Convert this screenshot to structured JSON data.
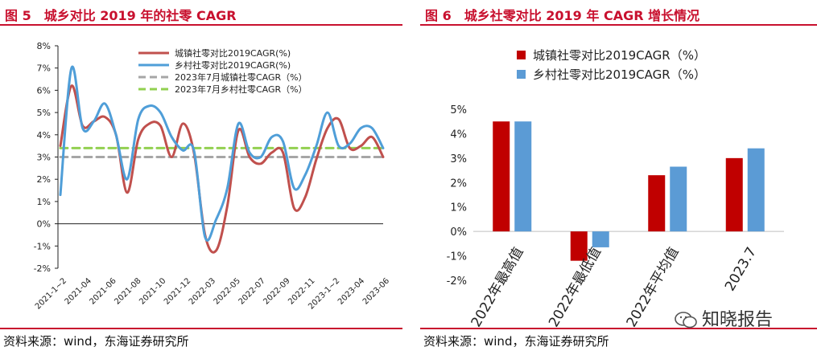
{
  "left": {
    "title": "图 5　城乡对比 2019 年的社零 CAGR",
    "source": "资料来源：wind，东海证券研究所"
  },
  "right": {
    "title": "图 6　城乡社零对比 2019 年 CAGR 增长情况",
    "source": "资料来源：wind，东海证券研究所"
  },
  "watermark": {
    "text": "知晓报告",
    "icon": "wechat-icon"
  },
  "colors": {
    "urban": "#c0504d",
    "rural": "#4f9ed8",
    "urban_avg": "#a6a6a6",
    "rural_avg": "#92d050",
    "bar_urban": "#c00000",
    "bar_rural": "#5b9bd5",
    "accent": "#c8102e"
  },
  "chart_data": [
    {
      "type": "line",
      "x_ticks": [
        "2021-1~2",
        "2021-04",
        "2021-06",
        "2021-08",
        "2021-10",
        "2021-12",
        "2022-03",
        "2022-05",
        "2022-07",
        "2022-09",
        "2022-11",
        "2023-1~2",
        "2023-04",
        "2023-06"
      ],
      "y_ticks": [
        "-2%",
        "-1%",
        "0%",
        "1%",
        "2%",
        "3%",
        "4%",
        "5%",
        "6%",
        "7%",
        "8%"
      ],
      "ylim": [
        -2,
        8
      ],
      "legend_position": "top-right",
      "series": [
        {
          "name": "城镇社零对比2019CAGR(%)",
          "style": "solid",
          "values": [
            3.5,
            6.2,
            4.4,
            4.6,
            4.8,
            4.0,
            1.4,
            3.8,
            4.5,
            4.4,
            3.0,
            4.5,
            3.2,
            -0.5,
            -1.2,
            0.8,
            4.2,
            3.0,
            2.7,
            3.2,
            3.2,
            0.7,
            1.2,
            2.9,
            4.3,
            4.7,
            3.4,
            3.5,
            3.9,
            3.0
          ]
        },
        {
          "name": "乡村社零对比2019CAGR(%)",
          "style": "solid",
          "values": [
            1.3,
            7.0,
            4.3,
            4.6,
            5.4,
            4.0,
            2.0,
            4.7,
            5.3,
            5.0,
            3.9,
            3.3,
            3.3,
            -0.6,
            0.2,
            1.6,
            4.5,
            3.2,
            3.0,
            3.9,
            3.7,
            1.6,
            2.2,
            3.5,
            5.0,
            3.5,
            3.6,
            4.3,
            4.3,
            3.4
          ]
        },
        {
          "name": "2023年7月城镇社零CAGR（%）",
          "style": "dashed",
          "values": [
            3.0,
            3.0
          ]
        },
        {
          "name": "2023年7月乡村社零CAGR（%）",
          "style": "dashed",
          "values": [
            3.4,
            3.4
          ]
        }
      ]
    },
    {
      "type": "bar",
      "categories": [
        "2022年最高值",
        "2022年最低值",
        "2022年平均值",
        "2023.7"
      ],
      "y_ticks": [
        "-2%",
        "-1%",
        "0%",
        "1%",
        "2%",
        "3%",
        "4%",
        "5%"
      ],
      "ylim": [
        -2,
        5
      ],
      "legend_position": "top-left",
      "series": [
        {
          "name": "城镇社零对比2019CAGR（%）",
          "values": [
            4.5,
            -1.2,
            2.3,
            3.0
          ]
        },
        {
          "name": "乡村社零对比2019CAGR（%）",
          "values": [
            4.5,
            -0.65,
            2.65,
            3.4
          ]
        }
      ]
    }
  ]
}
